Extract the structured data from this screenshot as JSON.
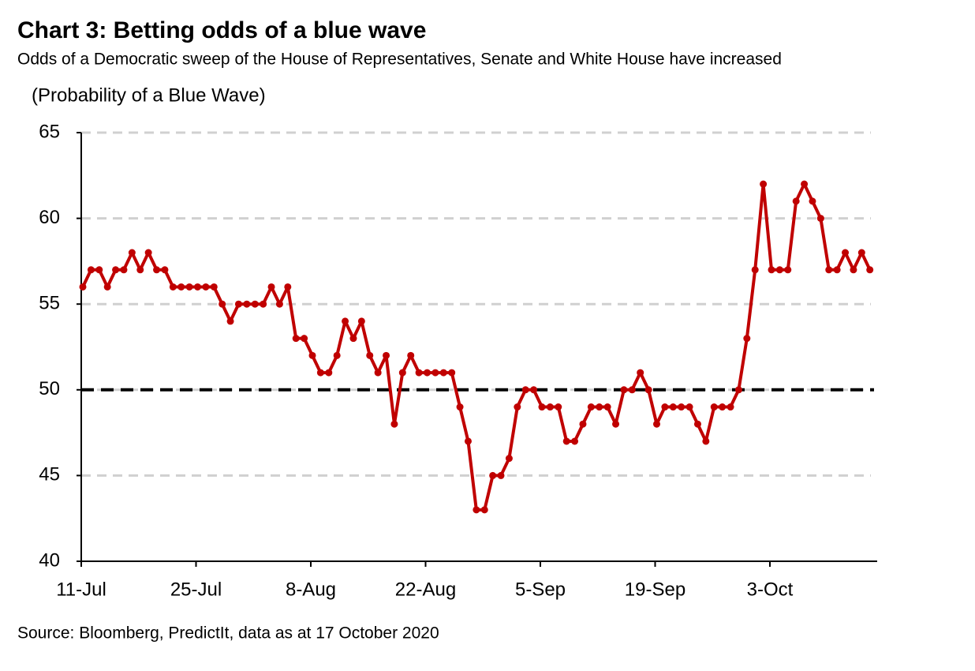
{
  "chart_data": {
    "type": "line",
    "title": "Chart 3: Betting odds of a blue wave",
    "subtitle": "Odds of a Democratic sweep of the House of Representatives, Senate and White House have increased",
    "y_label": "(Probability of a Blue Wave)",
    "source": "Source: Bloomberg, PredictIt, data as at 17 October 2020",
    "categories": [
      "11-Jul",
      null,
      null,
      null,
      null,
      null,
      null,
      null,
      null,
      null,
      null,
      null,
      null,
      null,
      "25-Jul",
      null,
      null,
      null,
      null,
      null,
      null,
      null,
      null,
      null,
      null,
      null,
      null,
      null,
      "8-Aug",
      null,
      null,
      null,
      null,
      null,
      null,
      null,
      null,
      null,
      null,
      null,
      null,
      null,
      "22-Aug",
      null,
      null,
      null,
      null,
      null,
      null,
      null,
      null,
      null,
      null,
      null,
      null,
      null,
      "5-Sep",
      null,
      null,
      null,
      null,
      null,
      null,
      null,
      null,
      null,
      null,
      null,
      null,
      null,
      "19-Sep",
      null,
      null,
      null,
      null,
      null,
      null,
      null,
      null,
      null,
      null,
      null,
      null,
      null,
      "3-Oct",
      null,
      null,
      null,
      null,
      null,
      null,
      null,
      null,
      null,
      null,
      null,
      null
    ],
    "series": [
      {
        "name": "Probability of a Blue Wave",
        "color": "#c00000",
        "values": [
          56,
          57,
          57,
          56,
          57,
          57,
          58,
          57,
          58,
          57,
          57,
          56,
          56,
          56,
          56,
          56,
          56,
          55,
          54,
          55,
          55,
          55,
          55,
          56,
          55,
          56,
          53,
          53,
          52,
          51,
          51,
          52,
          54,
          53,
          54,
          52,
          51,
          52,
          48,
          51,
          52,
          51,
          51,
          51,
          51,
          51,
          49,
          47,
          43,
          43,
          45,
          45,
          46,
          49,
          50,
          50,
          49,
          49,
          49,
          47,
          47,
          48,
          49,
          49,
          49,
          48,
          50,
          50,
          51,
          50,
          48,
          49,
          49,
          49,
          49,
          48,
          47,
          49,
          49,
          49,
          50,
          53,
          57,
          62,
          57,
          57,
          57,
          61,
          62,
          61,
          60,
          57,
          57,
          58,
          57,
          58,
          57
        ]
      }
    ],
    "reference_line": {
      "value": 50,
      "color": "#000000"
    },
    "ylim": [
      40,
      65
    ],
    "yticks": [
      40,
      45,
      50,
      55,
      60,
      65
    ],
    "grid": true
  }
}
